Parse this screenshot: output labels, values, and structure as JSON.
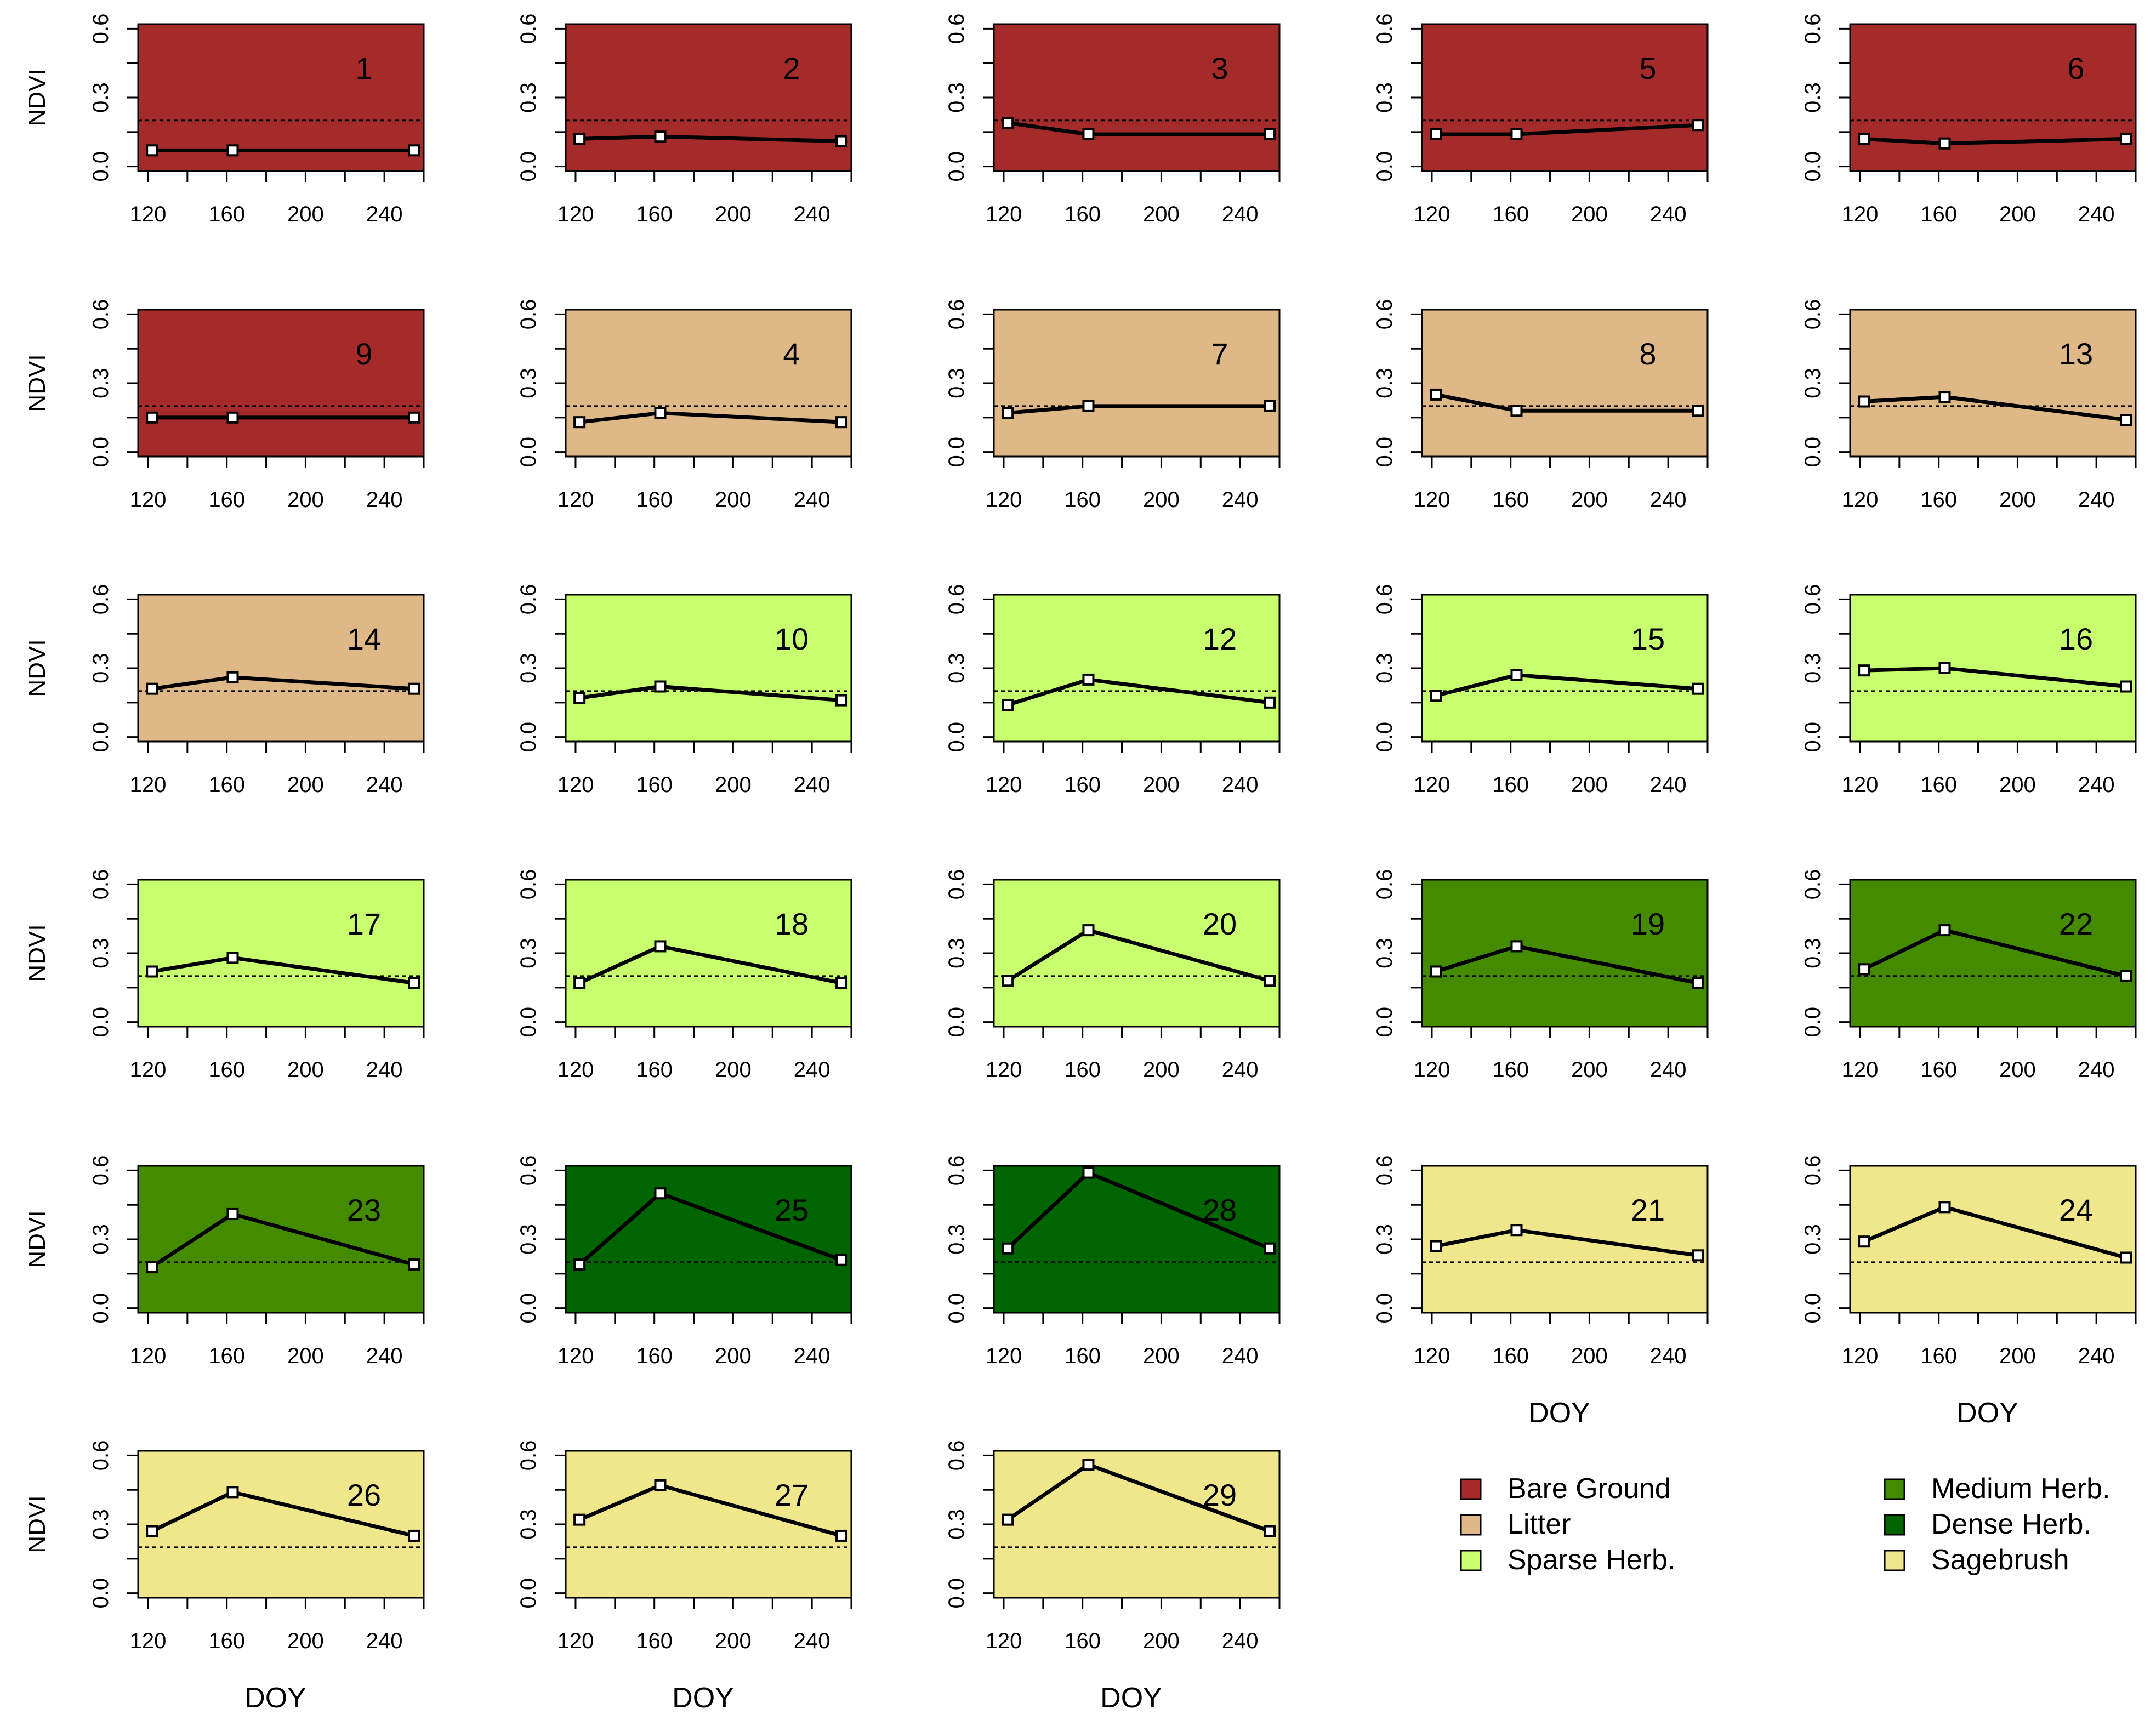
{
  "chart_data": {
    "type": "line",
    "title": "",
    "xlabel": "DOY",
    "ylabel": "NDVI",
    "xlim": [
      115,
      260
    ],
    "ylim": [
      -0.02,
      0.62
    ],
    "x_ticks": [
      "120",
      "160",
      "200",
      "240"
    ],
    "y_ticks": [
      "0.0",
      "0.3",
      "0.6"
    ],
    "threshold": 0.2,
    "x": [
      122,
      163,
      255
    ],
    "legend": {
      "position": "bottom-right",
      "items": [
        {
          "label": "Bare Ground",
          "color": "#a52a2a"
        },
        {
          "label": "Litter",
          "color": "#deb887"
        },
        {
          "label": "Sparse Herb.",
          "color": "#c8ff6e"
        },
        {
          "label": "Medium Herb.",
          "color": "#458b00"
        },
        {
          "label": "Dense Herb.",
          "color": "#006400"
        },
        {
          "label": "Sagebrush",
          "color": "#f0e68c"
        }
      ]
    },
    "panels": [
      {
        "label": "1",
        "class": "Bare Ground",
        "values": [
          0.07,
          0.07,
          0.07
        ]
      },
      {
        "label": "2",
        "class": "Bare Ground",
        "values": [
          0.12,
          0.13,
          0.11
        ]
      },
      {
        "label": "3",
        "class": "Bare Ground",
        "values": [
          0.19,
          0.14,
          0.14
        ]
      },
      {
        "label": "5",
        "class": "Bare Ground",
        "values": [
          0.14,
          0.14,
          0.18
        ]
      },
      {
        "label": "6",
        "class": "Bare Ground",
        "values": [
          0.12,
          0.1,
          0.12
        ]
      },
      {
        "label": "9",
        "class": "Bare Ground",
        "values": [
          0.15,
          0.15,
          0.15
        ]
      },
      {
        "label": "4",
        "class": "Litter",
        "values": [
          0.13,
          0.17,
          0.13
        ]
      },
      {
        "label": "7",
        "class": "Litter",
        "values": [
          0.17,
          0.2,
          0.2
        ]
      },
      {
        "label": "8",
        "class": "Litter",
        "values": [
          0.25,
          0.18,
          0.18
        ]
      },
      {
        "label": "13",
        "class": "Litter",
        "values": [
          0.22,
          0.24,
          0.14
        ]
      },
      {
        "label": "14",
        "class": "Litter",
        "values": [
          0.21,
          0.26,
          0.21
        ]
      },
      {
        "label": "10",
        "class": "Sparse Herb.",
        "values": [
          0.17,
          0.22,
          0.16
        ]
      },
      {
        "label": "12",
        "class": "Sparse Herb.",
        "values": [
          0.14,
          0.25,
          0.15
        ]
      },
      {
        "label": "15",
        "class": "Sparse Herb.",
        "values": [
          0.18,
          0.27,
          0.21
        ]
      },
      {
        "label": "16",
        "class": "Sparse Herb.",
        "values": [
          0.29,
          0.3,
          0.22
        ]
      },
      {
        "label": "17",
        "class": "Sparse Herb.",
        "values": [
          0.22,
          0.28,
          0.17
        ]
      },
      {
        "label": "18",
        "class": "Sparse Herb.",
        "values": [
          0.17,
          0.33,
          0.17
        ]
      },
      {
        "label": "20",
        "class": "Sparse Herb.",
        "values": [
          0.18,
          0.4,
          0.18
        ]
      },
      {
        "label": "19",
        "class": "Medium Herb.",
        "values": [
          0.22,
          0.33,
          0.17
        ]
      },
      {
        "label": "22",
        "class": "Medium Herb.",
        "values": [
          0.23,
          0.4,
          0.2
        ]
      },
      {
        "label": "23",
        "class": "Medium Herb.",
        "values": [
          0.18,
          0.41,
          0.19
        ]
      },
      {
        "label": "25",
        "class": "Dense Herb.",
        "values": [
          0.19,
          0.5,
          0.21
        ]
      },
      {
        "label": "28",
        "class": "Dense Herb.",
        "values": [
          0.26,
          0.59,
          0.26
        ]
      },
      {
        "label": "21",
        "class": "Sagebrush",
        "values": [
          0.27,
          0.34,
          0.23
        ]
      },
      {
        "label": "24",
        "class": "Sagebrush",
        "values": [
          0.29,
          0.44,
          0.22
        ]
      },
      {
        "label": "26",
        "class": "Sagebrush",
        "values": [
          0.27,
          0.44,
          0.25
        ]
      },
      {
        "label": "27",
        "class": "Sagebrush",
        "values": [
          0.32,
          0.47,
          0.25
        ]
      },
      {
        "label": "29",
        "class": "Sagebrush",
        "values": [
          0.32,
          0.56,
          0.27
        ]
      }
    ]
  }
}
